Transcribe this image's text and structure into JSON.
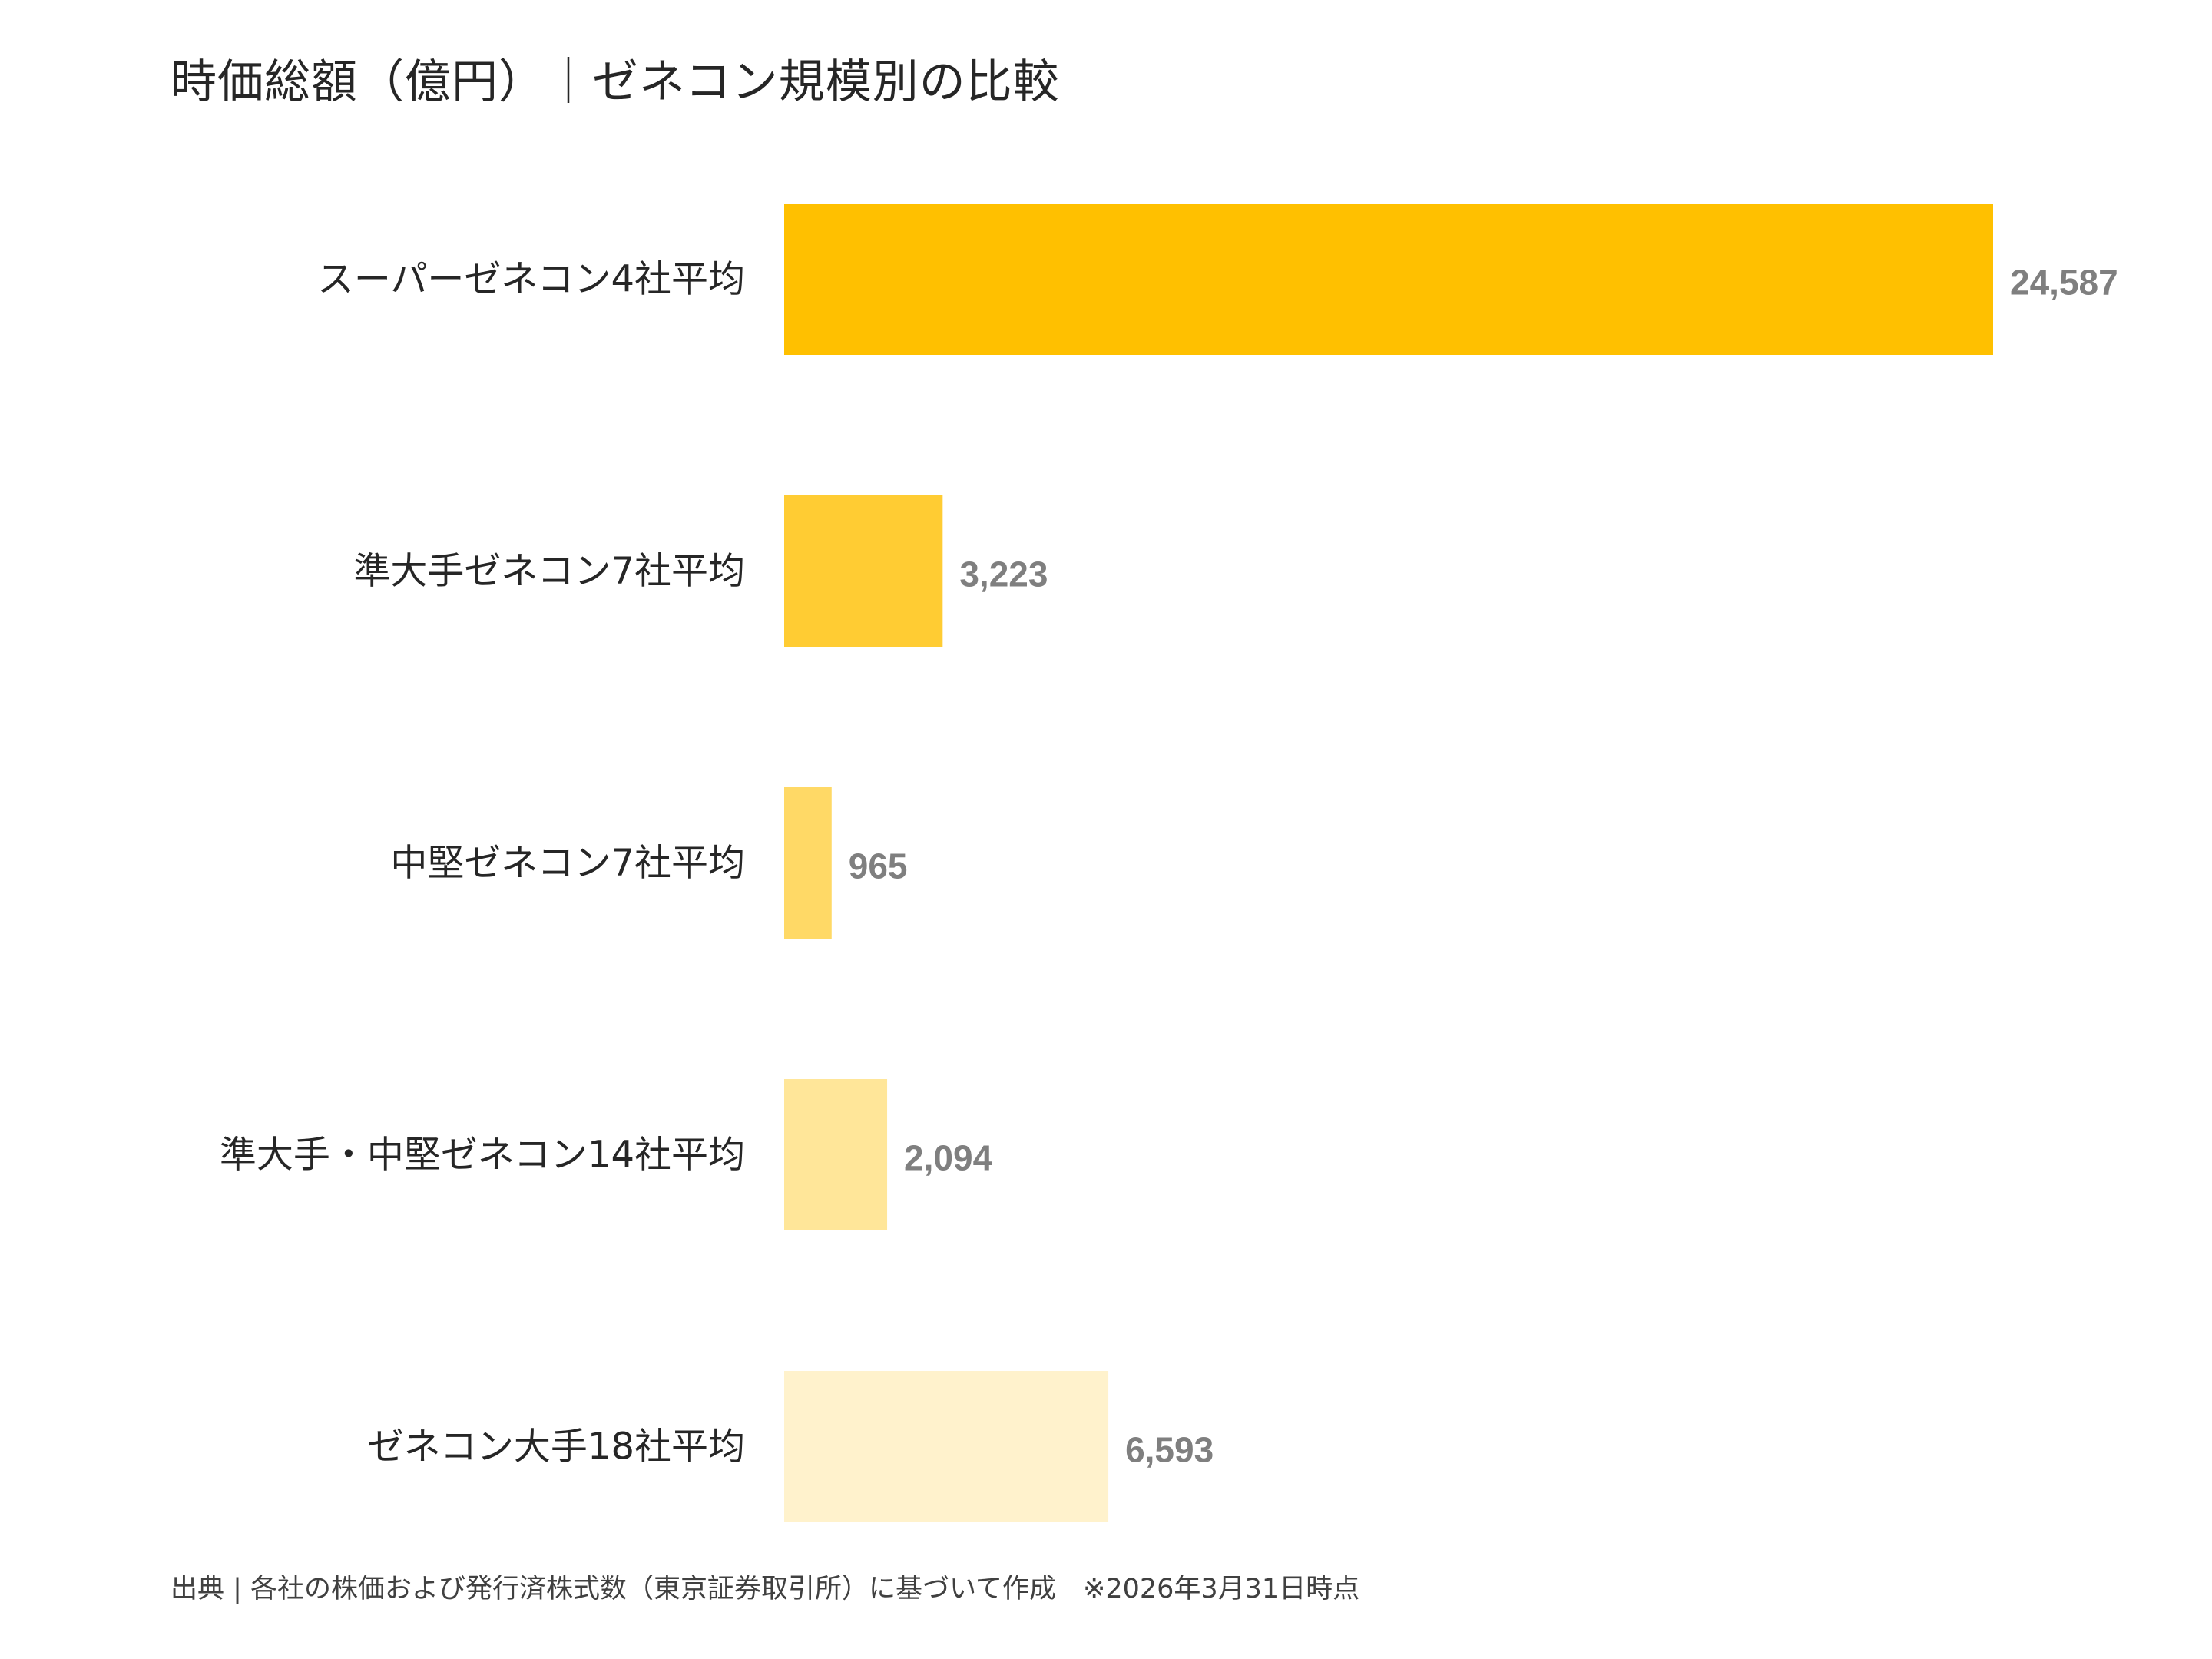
{
  "chart_data": {
    "type": "bar",
    "orientation": "horizontal",
    "title": "時価総額（億円）｜ゼネコン規模別の比較",
    "categories": [
      "スーパーゼネコン4社平均",
      "準大手ゼネコン7社平均",
      "中堅ゼネコン7社平均",
      "準大手・中堅ゼネコン14社平均",
      "ゼネコン大手18社平均"
    ],
    "values": [
      24587,
      3223,
      965,
      2094,
      6593
    ],
    "value_labels": [
      "24,587",
      "3,223",
      "965",
      "2,094",
      "6,593"
    ],
    "colors": [
      "#FFC000",
      "#FFCC33",
      "#FFD966",
      "#FFE699",
      "#FFF2CC"
    ],
    "value_label_color": "#7F7F7F",
    "xlim": [
      0,
      24587
    ],
    "grid": false,
    "legend": "none"
  },
  "footer": {
    "source_note": "出典 | 各社の株価および発行済株式数（東京証券取引所）に基づいて作成　※2026年3月31日時点"
  }
}
